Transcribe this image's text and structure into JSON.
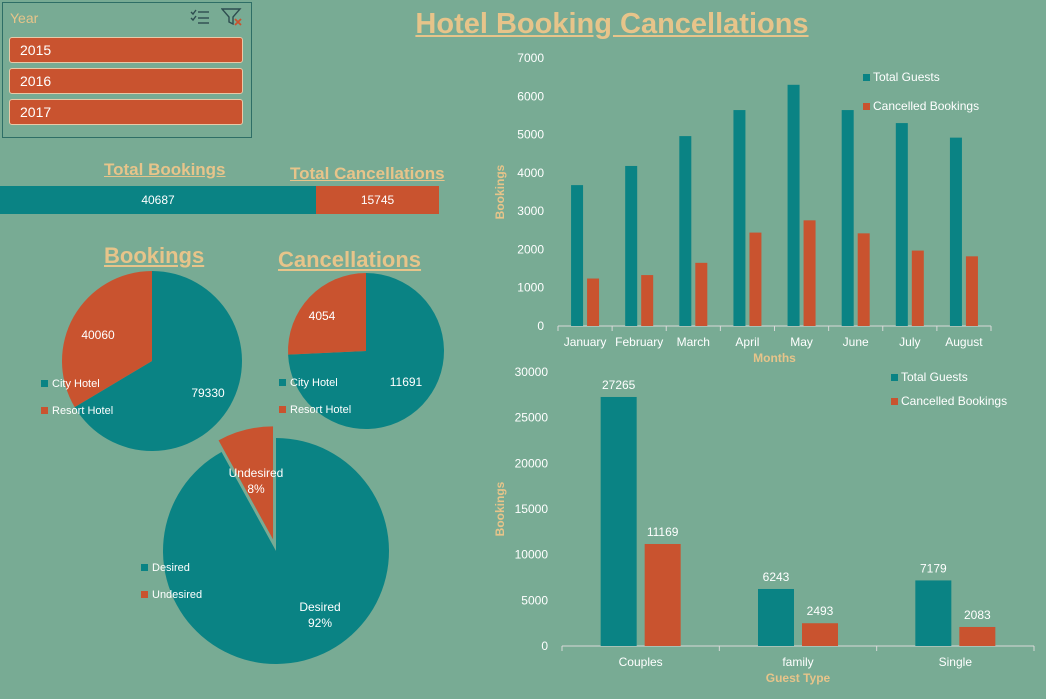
{
  "dashboard": {
    "title": "Hotel Booking Cancellations"
  },
  "slicer": {
    "label": "Year",
    "icons": [
      "multi-select-icon",
      "clear-filter-icon"
    ],
    "items": [
      "2015",
      "2016",
      "2017"
    ]
  },
  "kpis": {
    "bookings_label": "Total Bookings",
    "cancellations_label": "Total Cancellations",
    "bookings_value": "40687",
    "cancellations_value": "15745"
  },
  "colors": {
    "teal": "#0a8384",
    "orange": "#c9532f",
    "background": "#78ab94",
    "accent": "#e7c48a"
  },
  "chart_data": [
    {
      "type": "pie",
      "title": "Bookings",
      "labels": [
        "City Hotel",
        "Resort Hotel"
      ],
      "values": [
        79330,
        40060
      ],
      "value_labels": [
        "79330",
        "40060"
      ]
    },
    {
      "type": "pie",
      "title": "Cancellations",
      "labels": [
        "City Hotel",
        "Resort Hotel"
      ],
      "values": [
        11691,
        4054
      ],
      "value_labels": [
        "11691",
        "4054"
      ]
    },
    {
      "type": "pie",
      "title": "",
      "labels": [
        "Desired",
        "Undesired"
      ],
      "values": [
        92,
        8
      ],
      "value_labels": [
        "Desired\n92%",
        "Undesired\n8%"
      ],
      "exploded": "Undesired"
    },
    {
      "type": "bar",
      "title": "",
      "categories": [
        "January",
        "February",
        "March",
        "April",
        "May",
        "June",
        "July",
        "August"
      ],
      "series": [
        {
          "name": "Total Guests",
          "values": [
            3680,
            4180,
            4960,
            5640,
            6300,
            5640,
            5300,
            4920
          ]
        },
        {
          "name": "Cancelled Bookings",
          "values": [
            1240,
            1330,
            1650,
            2440,
            2760,
            2420,
            1970,
            1820
          ]
        }
      ],
      "xlabel": "Months",
      "ylabel": "Bookings",
      "ylim": [
        0,
        7000
      ],
      "yticks": [
        "0",
        "1000",
        "2000",
        "3000",
        "4000",
        "5000",
        "6000",
        "7000"
      ],
      "legend": "top-right",
      "grid": false
    },
    {
      "type": "bar",
      "title": "",
      "categories": [
        "Couples",
        "family",
        "Single"
      ],
      "series": [
        {
          "name": "Total Guests",
          "values": [
            27265,
            6243,
            7179
          ]
        },
        {
          "name": "Cancelled Bookings",
          "values": [
            11169,
            2493,
            2083
          ]
        }
      ],
      "data_labels": [
        [
          "27265",
          "11169"
        ],
        [
          "6243",
          "2493"
        ],
        [
          "7179",
          "2083"
        ]
      ],
      "xlabel": "Guest Type",
      "ylabel": "Bookings",
      "ylim": [
        0,
        30000
      ],
      "yticks": [
        "0",
        "5000",
        "10000",
        "15000",
        "20000",
        "25000",
        "30000"
      ],
      "legend": "top-right",
      "grid": false
    }
  ]
}
